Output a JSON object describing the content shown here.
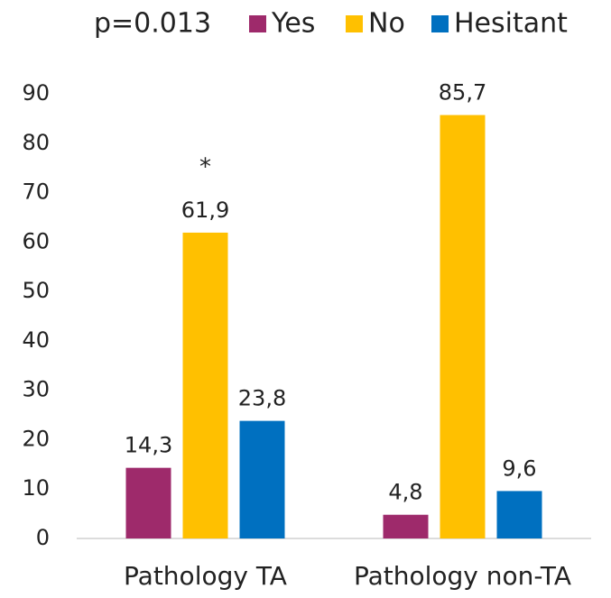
{
  "chart_data": {
    "type": "bar",
    "annotations": [
      "p=0.013",
      "*"
    ],
    "categories": [
      "Pathology TA",
      "Pathology non-TA"
    ],
    "series": [
      {
        "name": "Yes",
        "color": "#9e2a6b",
        "values": [
          14.3,
          4.8
        ],
        "value_labels": [
          "14,3",
          "4,8"
        ]
      },
      {
        "name": "No",
        "color": "#ffc000",
        "values": [
          61.9,
          85.7
        ],
        "value_labels": [
          "61,9",
          "85,7"
        ]
      },
      {
        "name": "Hesitant",
        "color": "#0070c0",
        "values": [
          23.8,
          9.6
        ],
        "value_labels": [
          "23,8",
          "9,6"
        ]
      }
    ],
    "ylim": [
      0,
      90
    ],
    "yticks": [
      0,
      10,
      20,
      30,
      40,
      50,
      60,
      70,
      80,
      90
    ],
    "grid": false,
    "legend": "top"
  }
}
